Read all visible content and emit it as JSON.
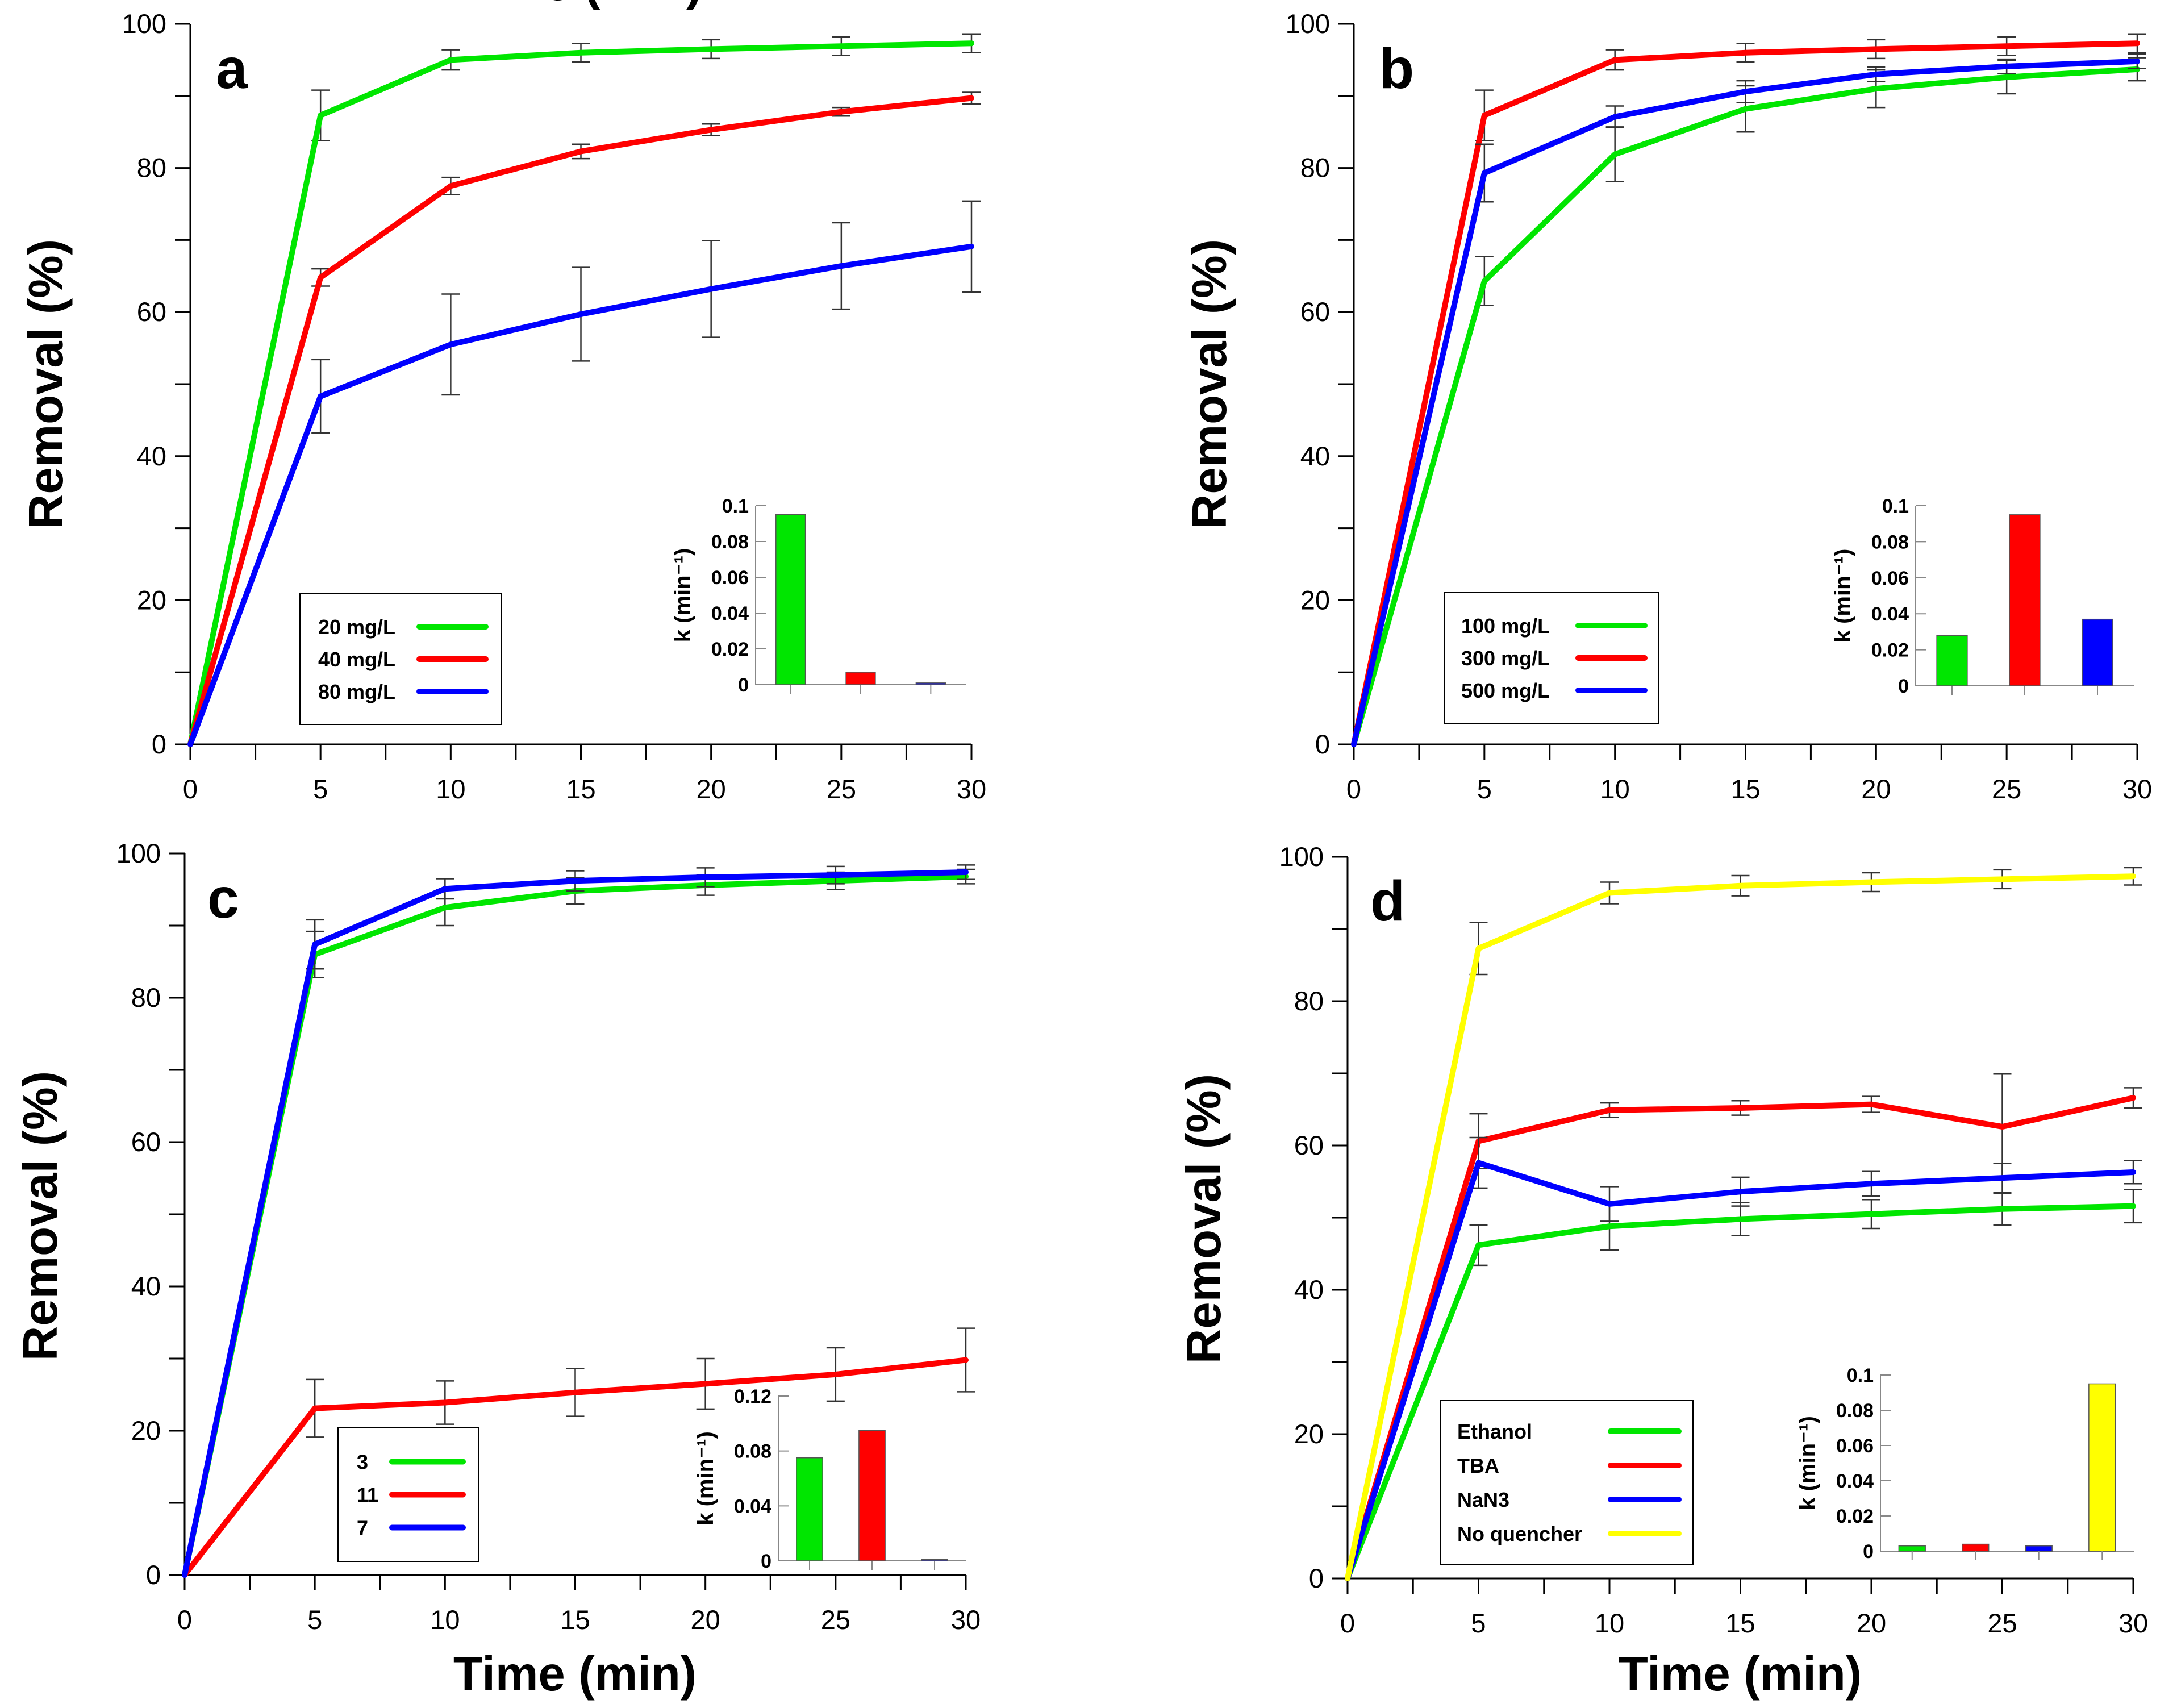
{
  "chart_data": [
    {
      "panel": "a",
      "type": "line",
      "xlabel": "Time (min)",
      "ylabel": "Removal (%)",
      "xlim": [
        0,
        30
      ],
      "ylim": [
        0,
        100
      ],
      "xticks": [
        "0",
        "5",
        "10",
        "15",
        "20",
        "25",
        "30"
      ],
      "yticks": [
        "0",
        "20",
        "40",
        "60",
        "80",
        "100"
      ],
      "x": [
        0,
        5,
        10,
        15,
        20,
        25,
        30
      ],
      "series": [
        {
          "name": "20 mg/L",
          "color": "#00e600",
          "values": [
            0,
            87.3,
            95.0,
            96.0,
            96.5,
            96.9,
            97.3
          ],
          "errors": [
            0,
            3.5,
            1.4,
            1.3,
            1.3,
            1.3,
            1.3
          ]
        },
        {
          "name": "40 mg/L",
          "color": "#ff0000",
          "values": [
            0,
            64.8,
            77.5,
            82.3,
            85.3,
            87.8,
            89.7
          ],
          "errors": [
            0,
            1.2,
            1.2,
            1.0,
            0.8,
            0.6,
            0.8
          ]
        },
        {
          "name": "80 mg/L",
          "color": "#0000ff",
          "values": [
            0,
            48.3,
            55.5,
            59.7,
            63.2,
            66.4,
            69.1
          ],
          "errors": [
            0,
            5.1,
            7.0,
            6.5,
            6.7,
            6.0,
            6.3
          ]
        }
      ],
      "legend_position": "bottom-left",
      "inset": {
        "title": "k (min⁻¹)",
        "yticks": [
          "0",
          "0.02",
          "0.04",
          "0.06",
          "0.08",
          "0.1"
        ],
        "ylim": [
          0,
          0.1
        ],
        "values": [
          0.095,
          0.007,
          0.001
        ],
        "colors": [
          "#00e600",
          "#ff0000",
          "#0000ff"
        ]
      }
    },
    {
      "panel": "b",
      "type": "line",
      "xlabel": "",
      "ylabel": "Removal (%)",
      "xlim": [
        0,
        30
      ],
      "ylim": [
        0,
        100
      ],
      "xticks": [
        "0",
        "5",
        "10",
        "15",
        "20",
        "25",
        "30"
      ],
      "yticks": [
        "0",
        "20",
        "40",
        "60",
        "80",
        "100"
      ],
      "x": [
        0,
        5,
        10,
        15,
        20,
        25,
        30
      ],
      "series": [
        {
          "name": "100 mg/L",
          "color": "#00e600",
          "values": [
            0,
            64.3,
            81.9,
            88.2,
            91.0,
            92.6,
            93.7
          ],
          "errors": [
            0,
            3.4,
            3.8,
            3.2,
            2.6,
            2.3,
            1.6
          ]
        },
        {
          "name": "300 mg/L",
          "color": "#ff0000",
          "values": [
            0,
            87.3,
            95.0,
            96.0,
            96.5,
            96.9,
            97.3
          ],
          "errors": [
            0,
            3.5,
            1.4,
            1.3,
            1.3,
            1.3,
            1.3
          ]
        },
        {
          "name": "500 mg/L",
          "color": "#0000ff",
          "values": [
            0,
            79.3,
            87.1,
            90.6,
            93.0,
            94.1,
            94.8
          ],
          "errors": [
            0,
            4.0,
            1.5,
            1.5,
            1.0,
            1.0,
            1.0
          ]
        }
      ],
      "legend_position": "bottom-center",
      "inset": {
        "title": "k (min⁻¹)",
        "yticks": [
          "0",
          "0.02",
          "0.04",
          "0.06",
          "0.08",
          "0.1"
        ],
        "ylim": [
          0,
          0.1
        ],
        "values": [
          0.028,
          0.095,
          0.037
        ],
        "colors": [
          "#00e600",
          "#ff0000",
          "#0000ff"
        ]
      }
    },
    {
      "panel": "c",
      "type": "line",
      "xlabel": "Time (min)",
      "ylabel": "Removal (%)",
      "xlim": [
        0,
        30
      ],
      "ylim": [
        0,
        100
      ],
      "xticks": [
        "0",
        "5",
        "10",
        "15",
        "20",
        "25",
        "30"
      ],
      "yticks": [
        "0",
        "20",
        "40",
        "60",
        "80",
        "100"
      ],
      "x": [
        0,
        5,
        10,
        15,
        20,
        25,
        30
      ],
      "series": [
        {
          "name": "3",
          "color": "#00e600",
          "values": [
            0,
            86.0,
            92.5,
            94.8,
            95.6,
            96.2,
            96.8
          ],
          "errors": [
            0,
            3.2,
            2.5,
            1.8,
            1.4,
            1.2,
            1.0
          ]
        },
        {
          "name": "11",
          "color": "#ff0000",
          "values": [
            0,
            23.1,
            23.9,
            25.3,
            26.5,
            27.8,
            29.8
          ],
          "errors": [
            0,
            4.0,
            3.0,
            3.3,
            3.5,
            3.7,
            4.4
          ]
        },
        {
          "name": "7",
          "color": "#0000ff",
          "values": [
            0,
            87.4,
            95.1,
            96.2,
            96.7,
            97.0,
            97.4
          ],
          "errors": [
            0,
            3.4,
            1.4,
            1.4,
            1.3,
            1.2,
            1.0
          ]
        }
      ],
      "legend_position": "bottom-center",
      "inset": {
        "title": "k (min⁻¹)",
        "yticks": [
          "0",
          "0.04",
          "0.08",
          "0.12"
        ],
        "ylim": [
          0,
          0.12
        ],
        "values": [
          0.075,
          0.095,
          0.001
        ],
        "colors": [
          "#00e600",
          "#ff0000",
          "#0000ff"
        ]
      }
    },
    {
      "panel": "d",
      "type": "line",
      "xlabel": "Time (min)",
      "ylabel": "Removal (%)",
      "xlim": [
        0,
        30
      ],
      "ylim": [
        0,
        100
      ],
      "xticks": [
        "0",
        "5",
        "10",
        "15",
        "20",
        "25",
        "30"
      ],
      "yticks": [
        "0",
        "20",
        "40",
        "60",
        "80",
        "100"
      ],
      "x": [
        0,
        5,
        10,
        15,
        20,
        25,
        30
      ],
      "series": [
        {
          "name": "Ethanol",
          "color": "#00e600",
          "values": [
            0,
            46.2,
            48.8,
            49.8,
            50.5,
            51.2,
            51.6
          ],
          "errors": [
            0,
            2.8,
            3.3,
            2.3,
            2.0,
            2.2,
            2.3
          ]
        },
        {
          "name": "TBA",
          "color": "#ff0000",
          "values": [
            0,
            60.6,
            64.9,
            65.2,
            65.7,
            62.6,
            66.6
          ],
          "errors": [
            0,
            3.8,
            1.0,
            1.0,
            1.1,
            7.3,
            1.4
          ]
        },
        {
          "name": "NaN3",
          "color": "#0000ff",
          "values": [
            0,
            57.6,
            51.9,
            53.6,
            54.7,
            55.5,
            56.3
          ],
          "errors": [
            0,
            3.5,
            2.4,
            2.0,
            1.7,
            2.0,
            1.6
          ]
        },
        {
          "name": "No quencher",
          "color": "#ffff00",
          "values": [
            0,
            87.3,
            95.0,
            96.0,
            96.5,
            96.9,
            97.3
          ],
          "errors": [
            0,
            3.6,
            1.5,
            1.4,
            1.3,
            1.3,
            1.2
          ]
        }
      ],
      "legend_position": "bottom-left",
      "inset": {
        "title": "k (min⁻¹)",
        "yticks": [
          "0",
          "0.02",
          "0.04",
          "0.06",
          "0.08",
          "0.1"
        ],
        "ylim": [
          0,
          0.1
        ],
        "values": [
          0.003,
          0.004,
          0.003,
          0.095
        ],
        "colors": [
          "#00e600",
          "#ff0000",
          "#0000ff",
          "#ffff00"
        ]
      }
    }
  ]
}
